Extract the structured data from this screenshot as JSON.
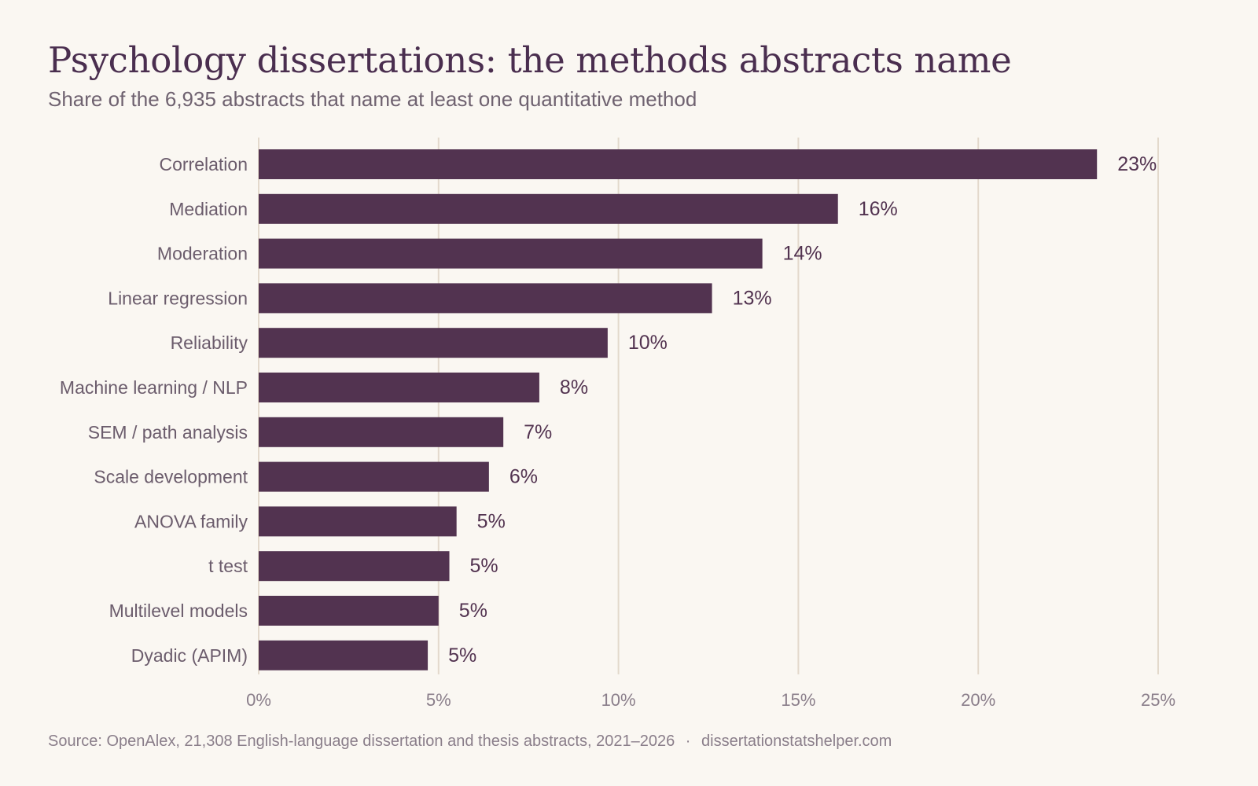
{
  "header": {
    "title": "Psychology dissertations: the methods abstracts name",
    "subtitle": "Share of the 6,935 abstracts that name at least one quantitative method"
  },
  "footer": {
    "source": "Source: OpenAlex, 21,308 English-language dissertation and thesis abstracts, 2021–2026",
    "separator": "·",
    "site": "dissertationstatshelper.com"
  },
  "colors": {
    "bar": "#523350",
    "grid": "#e3d9cc",
    "category_label": "#6b5c6c",
    "value_label": "#523350",
    "tick_label": "#8a7e8a",
    "background": "#faf7f2"
  },
  "chart_data": {
    "type": "bar",
    "orientation": "horizontal",
    "categories": [
      "Correlation",
      "Mediation",
      "Moderation",
      "Linear regression",
      "Reliability",
      "Machine learning / NLP",
      "SEM / path analysis",
      "Scale development",
      "ANOVA family",
      "t test",
      "Multilevel models",
      "Dyadic (APIM)"
    ],
    "values": [
      23.3,
      16.1,
      14.0,
      12.6,
      9.7,
      7.8,
      6.8,
      6.4,
      5.5,
      5.3,
      5.0,
      4.7
    ],
    "value_labels": [
      "23%",
      "16%",
      "14%",
      "13%",
      "10%",
      "8%",
      "7%",
      "6%",
      "5%",
      "5%",
      "5%",
      "5%"
    ],
    "xlim": [
      0,
      25
    ],
    "x_ticks": [
      0,
      5,
      10,
      15,
      20,
      25
    ],
    "x_tick_labels": [
      "0%",
      "5%",
      "10%",
      "15%",
      "20%",
      "25%"
    ],
    "grid": "vertical",
    "legend": "none"
  }
}
